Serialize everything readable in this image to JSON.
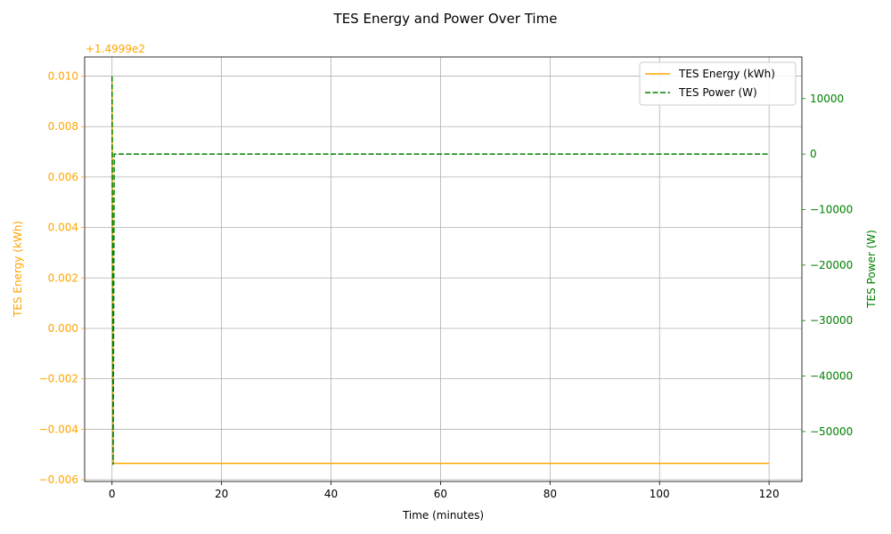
{
  "chart_data": {
    "type": "line",
    "title": "TES Energy and Power Over Time",
    "xlabel": "Time (minutes)",
    "ylabel_left": "TES Energy (kWh)",
    "ylabel_right": "TES Power (W)",
    "offset_label": "+1.4999e2",
    "xlim": [
      -5,
      126
    ],
    "ylim_left": [
      -0.00607,
      0.01076
    ],
    "ylim_right": [
      -59000,
      17500
    ],
    "x_ticks": [
      0,
      20,
      40,
      60,
      80,
      100,
      120
    ],
    "x_tick_labels": [
      "0",
      "20",
      "40",
      "60",
      "80",
      "100",
      "120"
    ],
    "y_left_ticks": [
      -0.006,
      -0.004,
      -0.002,
      0.0,
      0.002,
      0.004,
      0.006,
      0.008,
      0.01
    ],
    "y_left_tick_labels": [
      "−0.006",
      "−0.004",
      "−0.002",
      "0.000",
      "0.002",
      "0.004",
      "0.006",
      "0.008",
      "0.010"
    ],
    "y_right_ticks": [
      -50000,
      -40000,
      -30000,
      -20000,
      -10000,
      0,
      10000
    ],
    "y_right_tick_labels": [
      "−50000",
      "−40000",
      "−30000",
      "−20000",
      "−10000",
      "0",
      "10000"
    ],
    "grid": true,
    "legend_position": "top-right",
    "series": [
      {
        "name": "TES Energy (kWh)",
        "axis": "left",
        "color": "#ffa500",
        "style": "solid",
        "x": [
          0,
          0.2,
          120
        ],
        "y": [
          0.01,
          -0.00535,
          -0.00535
        ]
      },
      {
        "name": "TES Power (W)",
        "axis": "right",
        "color": "#008000",
        "style": "dashed",
        "x": [
          0,
          0.2,
          0.4,
          120
        ],
        "y": [
          14000,
          -56000,
          0,
          0
        ]
      }
    ]
  }
}
